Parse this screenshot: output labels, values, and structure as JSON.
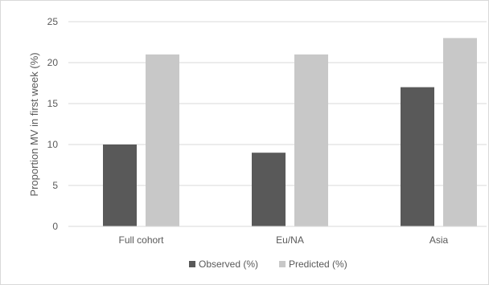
{
  "chart_data": {
    "type": "bar",
    "title": "",
    "xlabel": "",
    "ylabel": "Proportion MV in first week (%)",
    "categories": [
      "Full cohort",
      "Eu/NA",
      "Asia"
    ],
    "series": [
      {
        "name": "Observed (%)",
        "values": [
          10,
          9,
          17
        ],
        "color": "#595959"
      },
      {
        "name": "Predicted (%)",
        "values": [
          21,
          21,
          23
        ],
        "color": "#c8c8c8"
      }
    ],
    "ylim": [
      0,
      25
    ],
    "yticks": [
      0,
      5,
      10,
      15,
      20,
      25
    ],
    "grid": true,
    "legend": "bottom"
  }
}
